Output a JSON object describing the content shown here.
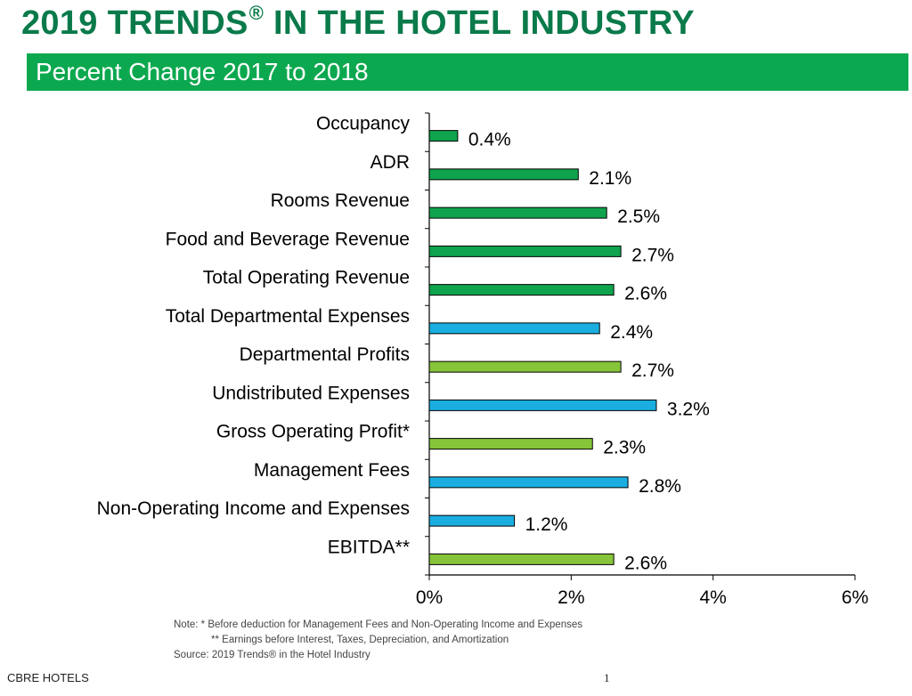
{
  "page": {
    "title_main": "2019 TRENDS",
    "title_reg": "®",
    "title_rest": " IN THE HOTEL INDUSTRY",
    "subtitle": "Percent Change 2017 to 2018",
    "footer_left": "CBRE HOTELS",
    "page_number": "1"
  },
  "notes": {
    "line1": "Note: * Before deduction for Management Fees and Non-Operating Income and Expenses",
    "line2": "** Earnings before Interest, Taxes, Depreciation, and Amortization",
    "line3": "Source: 2019 Trends® in the Hotel Industry"
  },
  "colors": {
    "title": "#0a7a4a",
    "subtitle_bar": "#0ca84f",
    "revenue": "#0fa34d",
    "expense": "#1aaee0",
    "profit": "#86c43a",
    "axis": "#000000"
  },
  "chart_data": {
    "type": "bar",
    "orientation": "horizontal",
    "title": "Percent Change 2017 to 2018",
    "xlim": [
      0,
      6
    ],
    "x_ticks": [
      0,
      2,
      4,
      6
    ],
    "x_tick_labels": [
      "0%",
      "2%",
      "4%",
      "6%"
    ],
    "grid": false,
    "categories": [
      "Occupancy",
      "ADR",
      "Rooms Revenue",
      "Food and Beverage Revenue",
      "Total Operating Revenue",
      "Total Departmental Expenses",
      "Departmental Profits",
      "Undistributed Expenses",
      "Gross Operating Profit*",
      "Management Fees",
      "Non-Operating Income and Expenses",
      "EBITDA**"
    ],
    "values": [
      0.4,
      2.1,
      2.5,
      2.7,
      2.6,
      2.4,
      2.7,
      3.2,
      2.3,
      2.8,
      1.2,
      2.6
    ],
    "value_labels": [
      "0.4%",
      "2.1%",
      "2.5%",
      "2.7%",
      "2.6%",
      "2.4%",
      "2.7%",
      "3.2%",
      "2.3%",
      "2.8%",
      "1.2%",
      "2.6%"
    ],
    "bar_groups": [
      "revenue",
      "revenue",
      "revenue",
      "revenue",
      "revenue",
      "expense",
      "profit",
      "expense",
      "profit",
      "expense",
      "expense",
      "profit"
    ]
  }
}
